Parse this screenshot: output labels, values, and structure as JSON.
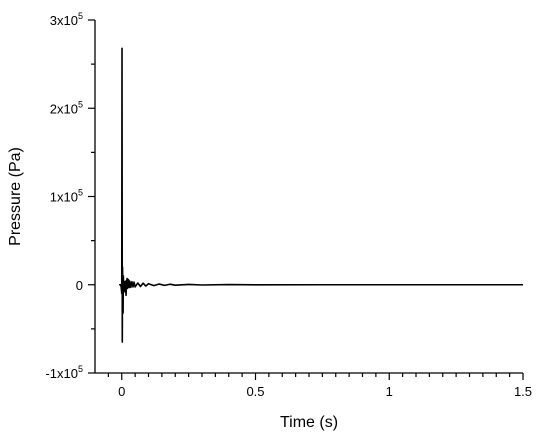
{
  "chart_data": {
    "type": "line",
    "title": "",
    "xlabel": "Time (s)",
    "ylabel": "Pressure (Pa)",
    "xlim": [
      -0.1,
      1.5
    ],
    "ylim": [
      -100000,
      300000
    ],
    "x_ticks": [
      0,
      0.5,
      1,
      1.5
    ],
    "x_tick_labels": [
      "0",
      "0.5",
      "1",
      "1.5"
    ],
    "x_minor_ticks": [
      -0.05,
      0.05,
      0.1,
      0.15,
      0.2,
      0.25,
      0.3,
      0.35,
      0.4,
      0.45,
      0.55,
      0.6,
      0.65,
      0.7,
      0.75,
      0.8,
      0.85,
      0.9,
      0.95,
      1.05,
      1.1,
      1.15,
      1.2,
      1.25,
      1.3,
      1.35,
      1.4,
      1.45
    ],
    "y_ticks": [
      {
        "value": -100000,
        "mantissa": "-1x10",
        "exponent": "5"
      },
      {
        "value": 0,
        "mantissa": "0",
        "exponent": ""
      },
      {
        "value": 100000,
        "mantissa": "1x10",
        "exponent": "5"
      },
      {
        "value": 200000,
        "mantissa": "2x10",
        "exponent": "5"
      },
      {
        "value": 300000,
        "mantissa": "3x10",
        "exponent": "5"
      }
    ],
    "y_minor_ticks": [
      -50000,
      50000,
      150000,
      250000
    ],
    "grid": false,
    "legend": "none",
    "line_color": "#000000",
    "series": [
      {
        "x": [
          -0.01,
          -0.004,
          -0.002,
          0.0,
          0.001,
          0.002,
          0.003,
          0.004,
          0.005,
          0.006,
          0.007,
          0.008,
          0.009,
          0.01,
          0.012,
          0.014,
          0.016,
          0.018,
          0.02,
          0.022,
          0.024,
          0.026,
          0.028,
          0.03,
          0.034,
          0.038,
          0.042,
          0.046,
          0.05,
          0.06,
          0.07,
          0.08,
          0.09,
          0.1,
          0.12,
          0.14,
          0.16,
          0.18,
          0.2,
          0.25,
          0.3,
          0.4,
          0.5,
          0.75,
          1.0,
          1.25,
          1.5
        ],
        "y": [
          0,
          0,
          -3000,
          -10000,
          268000,
          -65000,
          20000,
          -12000,
          -32000,
          10000,
          -6000,
          4000,
          -3000,
          2000,
          -8000,
          4000,
          -12000,
          3000,
          7000,
          -4000,
          6000,
          5000,
          -3000,
          4000,
          -3000,
          3500,
          -2500,
          3000,
          -2500,
          2000,
          -2000,
          1800,
          -1500,
          1200,
          -1000,
          800,
          -700,
          600,
          -500,
          400,
          -300,
          200,
          -100,
          0,
          0,
          0,
          0
        ]
      }
    ]
  }
}
